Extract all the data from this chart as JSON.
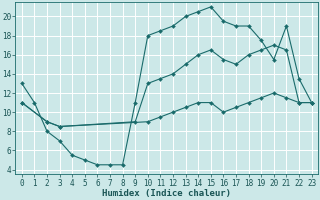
{
  "title": "",
  "xlabel": "Humidex (Indice chaleur)",
  "bg_color": "#cce8e8",
  "grid_color": "#ffffff",
  "line_color": "#1a6b6b",
  "xlim": [
    -0.5,
    23.5
  ],
  "ylim": [
    3.5,
    21.5
  ],
  "xticks": [
    0,
    1,
    2,
    3,
    4,
    5,
    6,
    7,
    8,
    9,
    10,
    11,
    12,
    13,
    14,
    15,
    16,
    17,
    18,
    19,
    20,
    21,
    22,
    23
  ],
  "yticks": [
    4,
    6,
    8,
    10,
    12,
    14,
    16,
    18,
    20
  ],
  "line1_x": [
    0,
    1,
    2,
    3,
    4,
    5,
    6,
    7,
    8,
    9,
    10,
    11,
    12,
    13,
    14,
    15,
    16,
    17,
    18,
    19,
    20,
    21,
    22,
    23
  ],
  "line1_y": [
    13,
    11,
    8,
    7,
    5.5,
    5,
    4.5,
    4.5,
    4.5,
    11,
    18,
    18.5,
    19,
    20,
    20.5,
    21,
    19.5,
    19,
    19,
    17.5,
    15.5,
    19,
    13.5,
    11
  ],
  "line2_x": [
    0,
    2,
    3,
    9,
    10,
    11,
    12,
    13,
    14,
    15,
    16,
    17,
    18,
    19,
    20,
    21,
    22,
    23
  ],
  "line2_y": [
    11,
    9,
    8.5,
    9,
    13,
    13.5,
    14,
    15,
    16,
    16.5,
    15.5,
    15,
    16,
    16.5,
    17,
    16.5,
    11,
    11
  ],
  "line3_x": [
    0,
    2,
    3,
    10,
    11,
    12,
    13,
    14,
    15,
    16,
    17,
    18,
    19,
    20,
    21,
    22,
    23
  ],
  "line3_y": [
    11,
    9,
    8.5,
    9,
    9.5,
    10,
    10.5,
    11,
    11,
    10,
    10.5,
    11,
    11.5,
    12,
    11.5,
    11,
    11
  ],
  "marker_size": 2.0,
  "line_width": 0.8,
  "tick_fontsize": 5.5,
  "xlabel_fontsize": 6.5
}
